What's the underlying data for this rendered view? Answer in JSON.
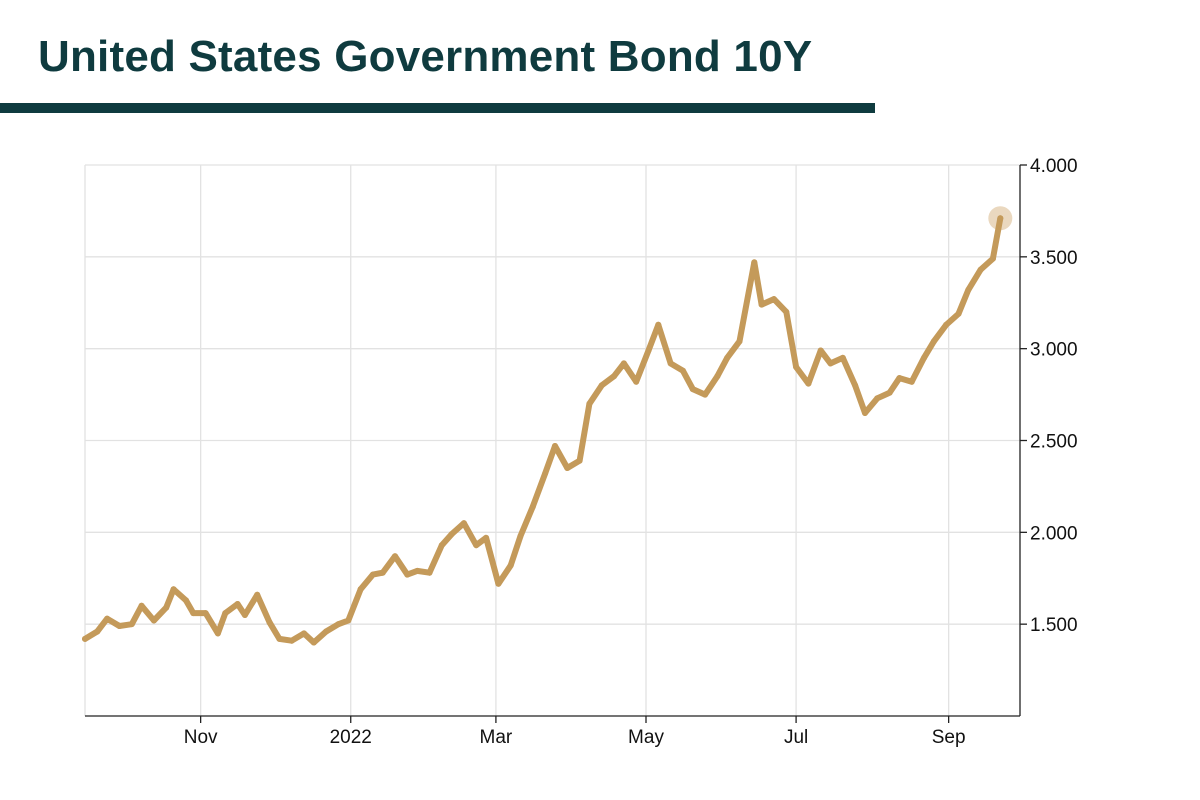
{
  "title": "United States Government Bond 10Y",
  "colors": {
    "title": "#0f3b3f",
    "line": "#c49a5a",
    "endpoint": "#ead8bf",
    "grid": "#e2e2e2"
  },
  "chart_data": {
    "type": "line",
    "title": "United States Government Bond 10Y",
    "xlabel": "",
    "ylabel": "",
    "x_ticks": [
      "Nov",
      "2022",
      "Mar",
      "May",
      "Jul",
      "Sep"
    ],
    "y_ticks": [
      "1.500",
      "2.000",
      "2.500",
      "3.000",
      "3.500",
      "4.000"
    ],
    "y_tick_values": [
      1.5,
      2.0,
      2.5,
      3.0,
      3.5,
      4.0
    ],
    "ylim": [
      1.0,
      4.0
    ],
    "xlim": [
      "2021-09-15",
      "2022-09-30"
    ],
    "x_tick_dates": [
      "2021-11-01",
      "2022-01-01",
      "2022-03-01",
      "2022-05-01",
      "2022-07-01",
      "2022-09-01"
    ],
    "y_axis_position": "right",
    "grid": true,
    "endpoint_marker": true,
    "series": [
      {
        "x": [
          "2021-09-15",
          "2021-09-20",
          "2021-09-24",
          "2021-09-29",
          "2021-10-04",
          "2021-10-08",
          "2021-10-13",
          "2021-10-18",
          "2021-10-21",
          "2021-10-26",
          "2021-10-29",
          "2021-11-03",
          "2021-11-08",
          "2021-11-11",
          "2021-11-16",
          "2021-11-19",
          "2021-11-24",
          "2021-11-29",
          "2021-12-03",
          "2021-12-08",
          "2021-12-13",
          "2021-12-17",
          "2021-12-22",
          "2021-12-27",
          "2021-12-31",
          "2022-01-05",
          "2022-01-10",
          "2022-01-14",
          "2022-01-19",
          "2022-01-24",
          "2022-01-28",
          "2022-02-02",
          "2022-02-07",
          "2022-02-11",
          "2022-02-16",
          "2022-02-21",
          "2022-02-25",
          "2022-03-02",
          "2022-03-07",
          "2022-03-11",
          "2022-03-16",
          "2022-03-21",
          "2022-03-25",
          "2022-03-30",
          "2022-04-04",
          "2022-04-08",
          "2022-04-13",
          "2022-04-18",
          "2022-04-22",
          "2022-04-27",
          "2022-05-02",
          "2022-05-06",
          "2022-05-11",
          "2022-05-16",
          "2022-05-20",
          "2022-05-25",
          "2022-05-30",
          "2022-06-03",
          "2022-06-08",
          "2022-06-14",
          "2022-06-17",
          "2022-06-22",
          "2022-06-27",
          "2022-07-01",
          "2022-07-06",
          "2022-07-11",
          "2022-07-15",
          "2022-07-20",
          "2022-07-25",
          "2022-07-29",
          "2022-08-03",
          "2022-08-08",
          "2022-08-12",
          "2022-08-17",
          "2022-08-22",
          "2022-08-26",
          "2022-08-31",
          "2022-09-05",
          "2022-09-09",
          "2022-09-14",
          "2022-09-19",
          "2022-09-22"
        ],
        "y": [
          1.42,
          1.46,
          1.53,
          1.49,
          1.5,
          1.6,
          1.52,
          1.59,
          1.69,
          1.63,
          1.56,
          1.56,
          1.45,
          1.56,
          1.61,
          1.55,
          1.66,
          1.51,
          1.42,
          1.41,
          1.45,
          1.4,
          1.46,
          1.5,
          1.52,
          1.69,
          1.77,
          1.78,
          1.87,
          1.77,
          1.79,
          1.78,
          1.93,
          1.99,
          2.05,
          1.93,
          1.97,
          1.72,
          1.82,
          1.98,
          2.14,
          2.32,
          2.47,
          2.35,
          2.39,
          2.7,
          2.8,
          2.85,
          2.92,
          2.82,
          2.99,
          3.13,
          2.92,
          2.88,
          2.78,
          2.75,
          2.85,
          2.95,
          3.04,
          3.47,
          3.24,
          3.27,
          3.2,
          2.9,
          2.81,
          2.99,
          2.92,
          2.95,
          2.8,
          2.65,
          2.73,
          2.76,
          2.84,
          2.82,
          2.95,
          3.04,
          3.13,
          3.19,
          3.32,
          3.43,
          3.49,
          3.71
        ]
      }
    ]
  }
}
